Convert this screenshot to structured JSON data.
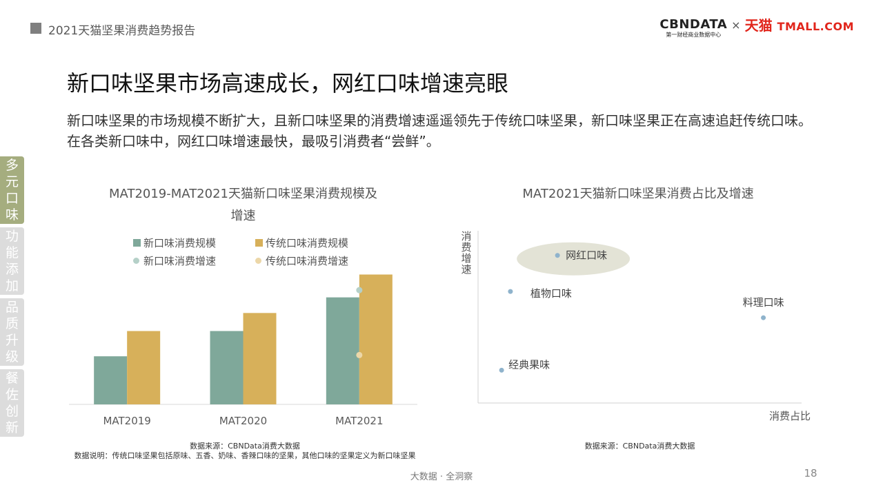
{
  "header": {
    "report_title": "2021天猫坚果消费趋势报告",
    "logo_cbn": "CBNDATA",
    "logo_cbn_sub": "第一财经商业数据中心",
    "logo_x": "×",
    "logo_tmall_cn": "天猫",
    "logo_tmall_en": "TMALL.COM"
  },
  "main_title": "新口味坚果市场高速成长，网红口味增速亮眼",
  "subtitle": "新口味坚果的市场规模不断扩大，且新口味坚果的消费增速遥遥领先于传统口味坚果，新口味坚果正在高速追赶传统口味。在各类新口味中，网红口味增速最快，最吸引消费者“尝鲜”。",
  "side_tabs": [
    {
      "chars": [
        "多",
        "元",
        "口",
        "味"
      ]
    },
    {
      "chars": [
        "功",
        "能",
        "添",
        "加"
      ]
    },
    {
      "chars": [
        "品",
        "质",
        "升",
        "级"
      ]
    },
    {
      "chars": [
        "餐",
        "佐",
        "创",
        "新"
      ]
    }
  ],
  "colors": {
    "new_bar": "#7fa89a",
    "trad_bar": "#d7b05a",
    "new_dot": "#b5d0c8",
    "trad_dot": "#ecd7a8",
    "scatter_dot": "#8fb3cc",
    "bubble": "#e3e3d6",
    "active_tab": "#a5ad7f",
    "inactive_tab": "#dcdcdc"
  },
  "chart_data": [
    {
      "type": "bar",
      "title_line1": "MAT2019-MAT2021天猫新口味坚果消费规模及",
      "title_line2": "增速",
      "categories": [
        "MAT2019",
        "MAT2020",
        "MAT2021"
      ],
      "series": [
        {
          "name": "新口味消费规模",
          "values": [
            0.4,
            0.61,
            0.89
          ]
        },
        {
          "name": "传统口味消费规模",
          "values": [
            0.61,
            0.76,
            1.08
          ]
        }
      ],
      "growth_series": [
        {
          "name": "新口味消费增速",
          "values": [
            null,
            null,
            0.95
          ]
        },
        {
          "name": "传统口味消费增速",
          "values": [
            null,
            null,
            0.41
          ]
        }
      ],
      "ylim": [
        0,
        1.1
      ],
      "legend": "top",
      "source": "数据来源：CBNData消费大数据",
      "note": "数据说明：传统口味坚果包括原味、五香、奶味、香辣口味的坚果，其他口味的坚果定义为新口味坚果"
    },
    {
      "type": "scatter",
      "title": "MAT2021天猫新口味坚果消费占比及增速",
      "xlabel": "消费占比",
      "ylabel": "消费增速",
      "points": [
        {
          "label": "网红口味",
          "x": 0.27,
          "y": 0.9
        },
        {
          "label": "植物口味",
          "x": 0.11,
          "y": 0.68
        },
        {
          "label": "料理口味",
          "x": 0.97,
          "y": 0.52
        },
        {
          "label": "经典果味",
          "x": 0.08,
          "y": 0.2
        }
      ],
      "xlim": [
        0,
        1.1
      ],
      "ylim": [
        0,
        1.05
      ],
      "highlight": "网红口味",
      "source": "数据来源：CBNData消费大数据"
    }
  ],
  "footer": {
    "text": "大数据 · 全洞察",
    "page_number": "18"
  }
}
